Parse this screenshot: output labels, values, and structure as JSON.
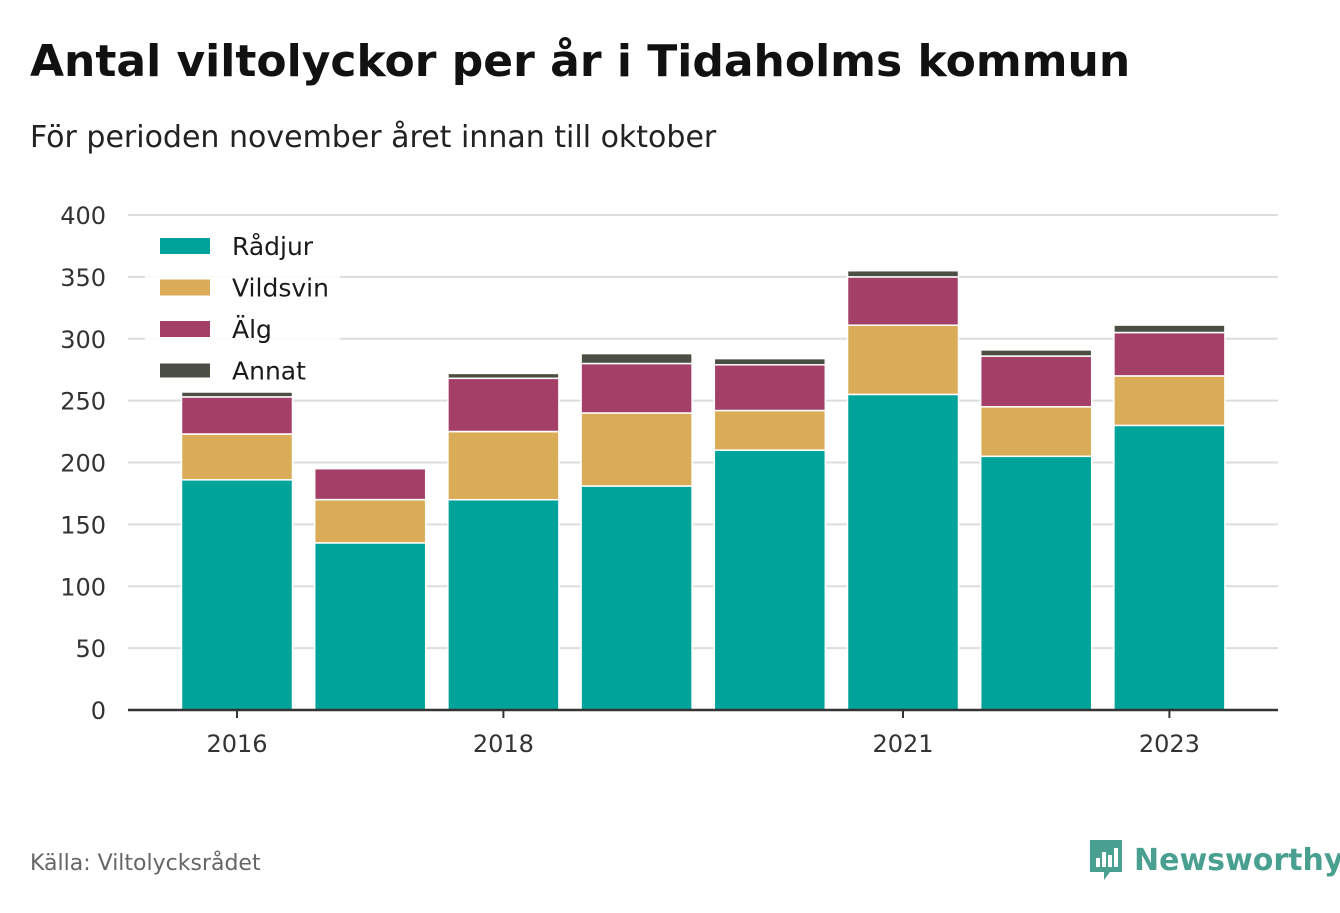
{
  "title": "Antal viltolyckor per år i Tidaholms kommun",
  "subtitle": "För perioden november året innan till oktober",
  "source": "Källa: Viltolycksrådet",
  "brand": {
    "name": "Newsworthy",
    "icon": "bar-chart-speech-bubble-icon",
    "color": "#4aa090"
  },
  "chart_data": {
    "type": "bar",
    "stacked": true,
    "categories": [
      "2016",
      "2017",
      "2018",
      "2019",
      "2020",
      "2021",
      "2022",
      "2023"
    ],
    "x_tick_labels": [
      "2016",
      "",
      "2018",
      "",
      "",
      "2021",
      "",
      "2023"
    ],
    "y_ticks": [
      0,
      50,
      100,
      150,
      200,
      250,
      300,
      350,
      400
    ],
    "ylim": [
      0,
      400
    ],
    "grid": true,
    "legend_position": "top-left",
    "series": [
      {
        "name": "Rådjur",
        "color": "#00a39a",
        "values": [
          186,
          135,
          170,
          181,
          210,
          255,
          205,
          230
        ]
      },
      {
        "name": "Vildsvin",
        "color": "#dbac57",
        "values": [
          37,
          35,
          55,
          59,
          32,
          56,
          40,
          40
        ]
      },
      {
        "name": "Älg",
        "color": "#a43f68",
        "values": [
          30,
          25,
          43,
          40,
          37,
          39,
          41,
          35
        ]
      },
      {
        "name": "Annat",
        "color": "#4b4e42",
        "values": [
          4,
          0,
          4,
          8,
          5,
          5,
          5,
          6
        ]
      }
    ]
  }
}
